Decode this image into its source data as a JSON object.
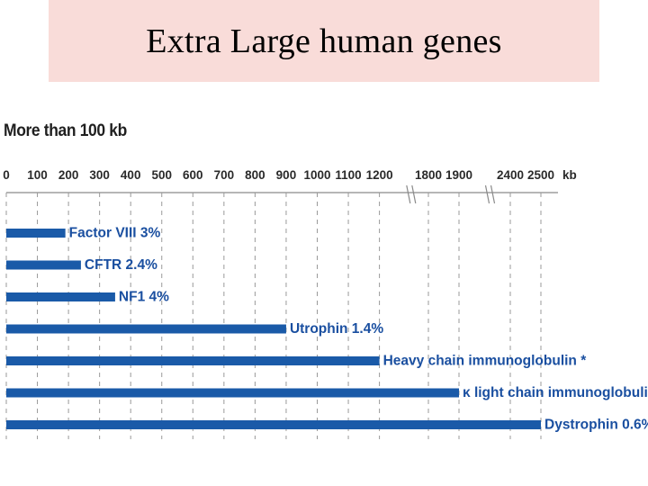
{
  "slide": {
    "title": "Extra Large human genes"
  },
  "chart_data": {
    "type": "bar",
    "orientation": "horizontal",
    "title": "More than 100 kb",
    "unit": "kb",
    "tick_labels": [
      "0",
      "100",
      "200",
      "300",
      "400",
      "500",
      "600",
      "700",
      "800",
      "900",
      "1000",
      "1100",
      "1200",
      "1800",
      "1900",
      "2400",
      "2500"
    ],
    "axis_breaks": [
      [
        1200,
        1800
      ],
      [
        1900,
        2400
      ]
    ],
    "categories": [
      "Factor VIII",
      "CFTR",
      "NF1",
      "Utrophin",
      "Heavy chain immunoglobulin *",
      "κ light chain immunoglobulin *",
      "Dystrophin"
    ],
    "percentages": [
      "3%",
      "2.4%",
      "4%",
      "1.4%",
      "",
      "",
      "0.6%"
    ],
    "values": [
      190,
      240,
      350,
      900,
      1200,
      1900,
      2500
    ],
    "bar_color": "#1a5aa8",
    "label_color": "#1a4fa0",
    "title_bg_color": "#f9dcd9"
  }
}
